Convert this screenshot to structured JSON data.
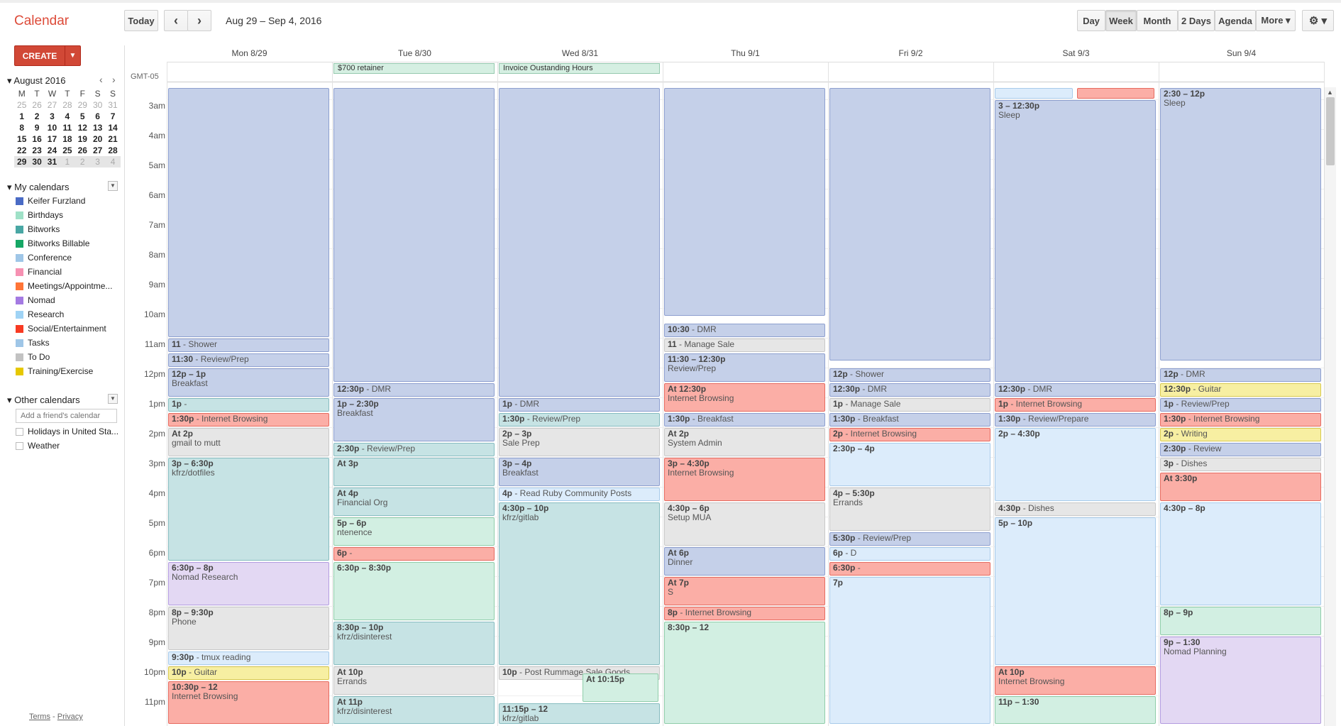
{
  "app": {
    "title": "Calendar"
  },
  "toolbar": {
    "today": "Today",
    "prev": "‹",
    "next": "›",
    "date_range": "Aug 29 – Sep 4, 2016",
    "views": [
      "Day",
      "Week",
      "Month",
      "2 Days",
      "Agenda",
      "More ▾"
    ],
    "selected_view": "Week",
    "settings_icon": "⚙ ▾"
  },
  "create": {
    "label": "CREATE",
    "arrow": "▼"
  },
  "minical": {
    "title": "▾ August 2016",
    "prev": "‹",
    "next": "›",
    "weekdays": [
      "M",
      "T",
      "W",
      "T",
      "F",
      "S",
      "S"
    ],
    "weeks": [
      [
        "25",
        "26",
        "27",
        "28",
        "29",
        "30",
        "31"
      ],
      [
        "1",
        "2",
        "3",
        "4",
        "5",
        "6",
        "7"
      ],
      [
        "8",
        "9",
        "10",
        "11",
        "12",
        "13",
        "14"
      ],
      [
        "15",
        "16",
        "17",
        "18",
        "19",
        "20",
        "21"
      ],
      [
        "22",
        "23",
        "24",
        "25",
        "26",
        "27",
        "28"
      ],
      [
        "29",
        "30",
        "31",
        "1",
        "2",
        "3",
        "4"
      ]
    ]
  },
  "my_calendars": {
    "title": "▾ My calendars",
    "items": [
      {
        "label": "Keifer Furzland",
        "color": "#4a6bc5"
      },
      {
        "label": "Birthdays",
        "color": "#9fe1c7"
      },
      {
        "label": "Bitworks",
        "color": "#49a7a4"
      },
      {
        "label": "Bitworks Billable",
        "color": "#16a765"
      },
      {
        "label": "Conference",
        "color": "#9fc6e7"
      },
      {
        "label": "Financial",
        "color": "#f691b2"
      },
      {
        "label": "Meetings/Appointme...",
        "color": "#ff7537"
      },
      {
        "label": "Nomad",
        "color": "#a47ae2"
      },
      {
        "label": "Research",
        "color": "#9fd3f5"
      },
      {
        "label": "Social/Entertainment",
        "color": "#f83a22"
      },
      {
        "label": "Tasks",
        "color": "#9fc6e7"
      },
      {
        "label": "To Do",
        "color": "#c2c2c2"
      },
      {
        "label": "Training/Exercise",
        "color": "#e6c800"
      }
    ]
  },
  "other_calendars": {
    "title": "▾ Other calendars",
    "placeholder": "Add a friend's calendar",
    "items": [
      {
        "label": "Holidays in United Sta..."
      },
      {
        "label": "Weather"
      }
    ]
  },
  "footer": {
    "terms": "Terms",
    "sep": " - ",
    "privacy": "Privacy"
  },
  "grid": {
    "gmt": "GMT-05",
    "days": [
      "Mon 8/29",
      "Tue 8/30",
      "Wed 8/31",
      "Thu 9/1",
      "Fri 9/2",
      "Sat 9/3",
      "Sun 9/4"
    ],
    "hours": [
      "3am",
      "4am",
      "5am",
      "6am",
      "7am",
      "8am",
      "9am",
      "10am",
      "11am",
      "12pm",
      "1pm",
      "2pm",
      "3pm",
      "4pm",
      "5pm",
      "6pm",
      "7pm",
      "8pm",
      "9pm",
      "10pm",
      "11pm"
    ],
    "allday": [
      {
        "day": 1,
        "span": 1,
        "text": "$700 retainer"
      },
      {
        "day": 2,
        "span": 1,
        "text": "Invoice Oustanding Hours"
      }
    ],
    "events": [
      {
        "day": 0,
        "start": 2.6,
        "end": 11.0,
        "c": "blue",
        "t": "",
        "n": ""
      },
      {
        "day": 0,
        "start": 11.0,
        "end": 11.5,
        "c": "blue",
        "t": "11",
        "n": " - Shower"
      },
      {
        "day": 0,
        "start": 11.5,
        "end": 12.0,
        "c": "blue",
        "t": "11:30",
        "n": " - Review/Prep"
      },
      {
        "day": 0,
        "start": 12.0,
        "end": 13.0,
        "c": "blue",
        "t": "12p – 1p",
        "n": "Breakfast",
        "block": true
      },
      {
        "day": 0,
        "start": 13.0,
        "end": 13.5,
        "c": "teal",
        "t": "1p",
        "n": " -"
      },
      {
        "day": 0,
        "start": 13.5,
        "end": 14.0,
        "c": "red",
        "t": "1:30p",
        "n": " - Internet Browsing"
      },
      {
        "day": 0,
        "start": 14.0,
        "end": 15.0,
        "c": "grey",
        "t": "At 2p",
        "n": "gmail to mutt",
        "block": true
      },
      {
        "day": 0,
        "start": 15.0,
        "end": 18.5,
        "c": "teal",
        "t": "3p – 6:30p",
        "n": "kfrz/dotfiles",
        "block": true
      },
      {
        "day": 0,
        "start": 18.5,
        "end": 20.0,
        "c": "purple",
        "t": "6:30p – 8p",
        "n": "Nomad Research",
        "block": true
      },
      {
        "day": 0,
        "start": 20.0,
        "end": 21.5,
        "c": "grey",
        "t": "8p – 9:30p",
        "n": "Phone",
        "block": true
      },
      {
        "day": 0,
        "start": 21.5,
        "end": 22.0,
        "c": "lblue",
        "t": "9:30p",
        "n": " - tmux reading"
      },
      {
        "day": 0,
        "start": 22.0,
        "end": 22.5,
        "c": "yellow",
        "t": "10p",
        "n": " - Guitar"
      },
      {
        "day": 0,
        "start": 22.5,
        "end": 24.0,
        "c": "red",
        "t": "10:30p – 12",
        "n": "Internet Browsing",
        "block": true
      },
      {
        "day": 1,
        "start": 2.6,
        "end": 12.5,
        "c": "blue",
        "t": "",
        "n": ""
      },
      {
        "day": 1,
        "start": 12.5,
        "end": 13.0,
        "c": "blue",
        "t": "12:30p",
        "n": " - DMR"
      },
      {
        "day": 1,
        "start": 13.0,
        "end": 14.5,
        "c": "blue",
        "t": "1p – 2:30p",
        "n": "Breakfast",
        "block": true
      },
      {
        "day": 1,
        "start": 14.5,
        "end": 15.0,
        "c": "teal",
        "t": "2:30p",
        "n": " - Review/Prep"
      },
      {
        "day": 1,
        "start": 15.0,
        "end": 16.0,
        "c": "teal",
        "t": "At 3p",
        "n": "",
        "block": true
      },
      {
        "day": 1,
        "start": 16.0,
        "end": 17.0,
        "c": "teal",
        "t": "At 4p",
        "n": "Financial Org",
        "block": true
      },
      {
        "day": 1,
        "start": 17.0,
        "end": 18.0,
        "c": "green",
        "t": "5p – 6p",
        "n": "ntenence",
        "block": true
      },
      {
        "day": 1,
        "start": 18.0,
        "end": 18.5,
        "c": "red",
        "t": "6p",
        "n": " -"
      },
      {
        "day": 1,
        "start": 18.5,
        "end": 20.5,
        "c": "green",
        "t": "6:30p – 8:30p",
        "n": "",
        "block": true
      },
      {
        "day": 1,
        "start": 20.5,
        "end": 22.0,
        "c": "teal",
        "t": "8:30p – 10p",
        "n": "kfrz/disinterest",
        "block": true
      },
      {
        "day": 1,
        "start": 22.0,
        "end": 23.0,
        "c": "grey",
        "t": "At 10p",
        "n": "Errands",
        "block": true
      },
      {
        "day": 1,
        "start": 23.0,
        "end": 24.0,
        "c": "teal",
        "t": "At 11p",
        "n": "kfrz/disinterest",
        "block": true
      },
      {
        "day": 2,
        "start": 2.6,
        "end": 13.0,
        "c": "blue",
        "t": "",
        "n": ""
      },
      {
        "day": 2,
        "start": 13.0,
        "end": 13.5,
        "c": "blue",
        "t": "1p",
        "n": " - DMR"
      },
      {
        "day": 2,
        "start": 13.5,
        "end": 14.0,
        "c": "teal",
        "t": "1:30p",
        "n": " - Review/Prep"
      },
      {
        "day": 2,
        "start": 14.0,
        "end": 15.0,
        "c": "grey",
        "t": "2p – 3p",
        "n": "Sale Prep",
        "block": true
      },
      {
        "day": 2,
        "start": 15.0,
        "end": 16.0,
        "c": "blue",
        "t": "3p – 4p",
        "n": "Breakfast",
        "block": true
      },
      {
        "day": 2,
        "start": 16.0,
        "end": 16.5,
        "c": "lblue",
        "t": "4p",
        "n": " - Read Ruby Community Posts"
      },
      {
        "day": 2,
        "start": 16.5,
        "end": 22.0,
        "c": "teal",
        "t": "4:30p – 10p",
        "n": "kfrz/gitlab",
        "block": true
      },
      {
        "day": 2,
        "start": 22.0,
        "end": 22.5,
        "c": "grey",
        "t": "10p",
        "n": " - Post Rummage Sale Goods"
      },
      {
        "day": 2,
        "start": 22.25,
        "end": 23.25,
        "c": "green",
        "t": "At 10:15p",
        "n": "",
        "block": true,
        "half": true
      },
      {
        "day": 2,
        "start": 23.25,
        "end": 24.0,
        "c": "teal",
        "t": "11:15p – 12",
        "n": "kfrz/gitlab",
        "block": true
      },
      {
        "day": 3,
        "start": 2.6,
        "end": 10.3,
        "c": "blue",
        "t": "",
        "n": ""
      },
      {
        "day": 3,
        "start": 10.5,
        "end": 11.0,
        "c": "blue",
        "t": "10:30",
        "n": " - DMR"
      },
      {
        "day": 3,
        "start": 11.0,
        "end": 11.5,
        "c": "grey",
        "t": "11",
        "n": " - Manage Sale"
      },
      {
        "day": 3,
        "start": 11.5,
        "end": 12.5,
        "c": "blue",
        "t": "11:30 – 12:30p",
        "n": "Review/Prep",
        "block": true
      },
      {
        "day": 3,
        "start": 12.5,
        "end": 13.5,
        "c": "red",
        "t": "At 12:30p",
        "n": "Internet Browsing",
        "block": true
      },
      {
        "day": 3,
        "start": 13.5,
        "end": 14.0,
        "c": "blue",
        "t": "1:30p",
        "n": " - Breakfast"
      },
      {
        "day": 3,
        "start": 14.0,
        "end": 15.0,
        "c": "grey",
        "t": "At 2p",
        "n": "System Admin",
        "block": true
      },
      {
        "day": 3,
        "start": 15.0,
        "end": 16.5,
        "c": "red",
        "t": "3p – 4:30p",
        "n": "Internet Browsing",
        "block": true
      },
      {
        "day": 3,
        "start": 16.5,
        "end": 18.0,
        "c": "grey",
        "t": "4:30p – 6p",
        "n": "Setup MUA",
        "block": true
      },
      {
        "day": 3,
        "start": 18.0,
        "end": 19.0,
        "c": "blue",
        "t": "At 6p",
        "n": "Dinner",
        "block": true
      },
      {
        "day": 3,
        "start": 19.0,
        "end": 20.0,
        "c": "red",
        "t": "At 7p",
        "n": "S",
        "block": true
      },
      {
        "day": 3,
        "start": 20.0,
        "end": 20.5,
        "c": "red",
        "t": "8p",
        "n": " - Internet Browsing"
      },
      {
        "day": 3,
        "start": 20.5,
        "end": 24.0,
        "c": "green",
        "t": "8:30p – 12",
        "n": "",
        "block": true
      },
      {
        "day": 4,
        "start": 2.6,
        "end": 11.8,
        "c": "blue",
        "t": "",
        "n": ""
      },
      {
        "day": 4,
        "start": 12.0,
        "end": 12.5,
        "c": "blue",
        "t": "12p",
        "n": " - Shower"
      },
      {
        "day": 4,
        "start": 12.5,
        "end": 13.0,
        "c": "blue",
        "t": "12:30p",
        "n": " - DMR"
      },
      {
        "day": 4,
        "start": 13.0,
        "end": 13.5,
        "c": "grey",
        "t": "1p",
        "n": " - Manage Sale"
      },
      {
        "day": 4,
        "start": 13.5,
        "end": 14.0,
        "c": "blue",
        "t": "1:30p",
        "n": " - Breakfast"
      },
      {
        "day": 4,
        "start": 14.0,
        "end": 14.5,
        "c": "red",
        "t": "2p",
        "n": " - Internet Browsing"
      },
      {
        "day": 4,
        "start": 14.5,
        "end": 16.0,
        "c": "lblue",
        "t": "2:30p – 4p",
        "n": "",
        "block": true
      },
      {
        "day": 4,
        "start": 16.0,
        "end": 17.5,
        "c": "grey",
        "t": "4p – 5:30p",
        "n": "Errands",
        "block": true
      },
      {
        "day": 4,
        "start": 17.5,
        "end": 18.0,
        "c": "blue",
        "t": "5:30p",
        "n": " - Review/Prep"
      },
      {
        "day": 4,
        "start": 18.0,
        "end": 18.5,
        "c": "lblue",
        "t": "6p",
        "n": " - D"
      },
      {
        "day": 4,
        "start": 18.5,
        "end": 19.0,
        "c": "red",
        "t": "6:30p",
        "n": " -"
      },
      {
        "day": 4,
        "start": 19.0,
        "end": 24.0,
        "c": "lblue",
        "t": "7p",
        "n": "",
        "block": true
      },
      {
        "day": 5,
        "start": 2.6,
        "end": 3.0,
        "c": "lblue",
        "t": "",
        "n": "",
        "half": true
      },
      {
        "day": 5,
        "start": 2.6,
        "end": 3.0,
        "c": "red",
        "t": "",
        "n": "",
        "halfright": true
      },
      {
        "day": 5,
        "start": 3.0,
        "end": 12.5,
        "c": "blue",
        "t": "3 – 12:30p",
        "n": "Sleep",
        "block": true
      },
      {
        "day": 5,
        "start": 12.5,
        "end": 13.0,
        "c": "blue",
        "t": "12:30p",
        "n": " - DMR"
      },
      {
        "day": 5,
        "start": 13.0,
        "end": 13.5,
        "c": "red",
        "t": "1p",
        "n": " - Internet Browsing"
      },
      {
        "day": 5,
        "start": 13.5,
        "end": 14.0,
        "c": "blue",
        "t": "1:30p",
        "n": " - Review/Prepare"
      },
      {
        "day": 5,
        "start": 14.0,
        "end": 16.5,
        "c": "lblue",
        "t": "2p – 4:30p",
        "n": "",
        "block": true
      },
      {
        "day": 5,
        "start": 16.5,
        "end": 17.0,
        "c": "grey",
        "t": "4:30p",
        "n": " - Dishes"
      },
      {
        "day": 5,
        "start": 17.0,
        "end": 22.0,
        "c": "lblue",
        "t": "5p – 10p",
        "n": "",
        "block": true
      },
      {
        "day": 5,
        "start": 22.0,
        "end": 23.0,
        "c": "red",
        "t": "At 10p",
        "n": "Internet Browsing",
        "block": true
      },
      {
        "day": 5,
        "start": 23.0,
        "end": 24.0,
        "c": "green",
        "t": "11p – 1:30",
        "n": "",
        "block": true
      },
      {
        "day": 6,
        "start": 2.6,
        "end": 11.8,
        "c": "blue",
        "t": "2:30 – 12p",
        "n": "Sleep",
        "block": true
      },
      {
        "day": 6,
        "start": 12.0,
        "end": 12.5,
        "c": "blue",
        "t": "12p",
        "n": " - DMR"
      },
      {
        "day": 6,
        "start": 12.5,
        "end": 13.0,
        "c": "yellow",
        "t": "12:30p",
        "n": " - Guitar"
      },
      {
        "day": 6,
        "start": 13.0,
        "end": 13.5,
        "c": "blue",
        "t": "1p",
        "n": " - Review/Prep"
      },
      {
        "day": 6,
        "start": 13.5,
        "end": 14.0,
        "c": "red",
        "t": "1:30p",
        "n": " - Internet Browsing"
      },
      {
        "day": 6,
        "start": 14.0,
        "end": 14.5,
        "c": "yellow",
        "t": "2p",
        "n": " - Writing"
      },
      {
        "day": 6,
        "start": 14.5,
        "end": 15.0,
        "c": "blue",
        "t": "2:30p",
        "n": " - Review"
      },
      {
        "day": 6,
        "start": 15.0,
        "end": 15.5,
        "c": "grey",
        "t": "3p",
        "n": " - Dishes"
      },
      {
        "day": 6,
        "start": 15.5,
        "end": 16.5,
        "c": "red",
        "t": "At 3:30p",
        "n": "",
        "block": true
      },
      {
        "day": 6,
        "start": 16.5,
        "end": 20.0,
        "c": "lblue",
        "t": "4:30p – 8p",
        "n": "",
        "block": true
      },
      {
        "day": 6,
        "start": 20.0,
        "end": 21.0,
        "c": "green",
        "t": "8p – 9p",
        "n": "",
        "block": true
      },
      {
        "day": 6,
        "start": 21.0,
        "end": 24.0,
        "c": "purple",
        "t": "9p – 1:30",
        "n": "Nomad Planning",
        "block": true
      }
    ]
  }
}
